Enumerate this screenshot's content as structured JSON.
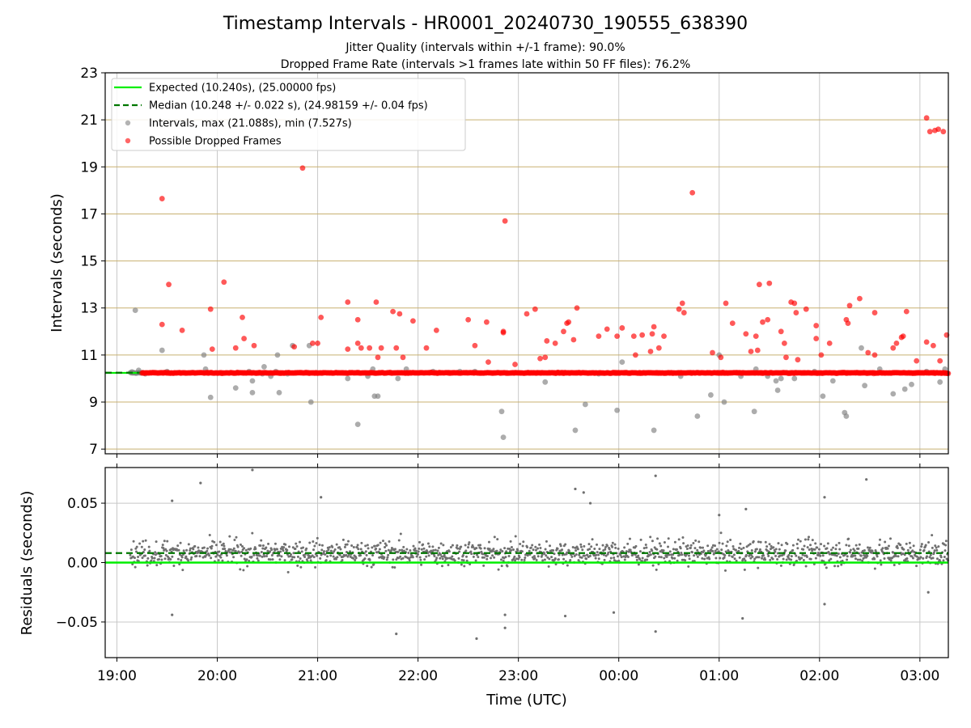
{
  "title": "Timestamp Intervals - HR0001_20240730_190555_638390",
  "subtitle1": "Jitter Quality (intervals within +/-1 frame): 90.0%",
  "subtitle2": "Dropped Frame Rate (intervals >1 frames late within 50 FF files): 76.2%",
  "colors": {
    "expected": "#00ee00",
    "median": "#007700",
    "intervals": "#808080",
    "dropped": "#ff0000",
    "hgrid": "#c8b070",
    "vgrid": "#c8c8c8"
  },
  "chart_data": [
    {
      "type": "scatter",
      "title": "Timestamp Intervals - HR0001_20240730_190555_638390",
      "xlabel": "",
      "ylabel": "Intervals (seconds)",
      "xlim": [
        "18:53",
        "03:17"
      ],
      "ylim": [
        6.8,
        23
      ],
      "xticks": [
        "19:00",
        "20:00",
        "21:00",
        "22:00",
        "23:00",
        "00:00",
        "01:00",
        "02:00",
        "03:00"
      ],
      "yticks": [
        7,
        9,
        11,
        13,
        15,
        17,
        19,
        21,
        23
      ],
      "grid": true,
      "legend_position": "top-left",
      "legend": [
        "Expected (10.240s), (25.00000 fps)",
        "Median (10.248 +/- 0.022 s), (24.98159 +/- 0.04 fps)",
        "Intervals, max (21.088s), min (7.527s)",
        "Possible Dropped Frames"
      ],
      "series": [
        {
          "name": "Expected (10.240s), (25.00000 fps)",
          "line_y": 10.24
        },
        {
          "name": "Median (10.248 +/- 0.022 s), (24.98159 +/- 0.04 fps)",
          "line_y": 10.248
        },
        {
          "name": "Intervals, max (21.088s), min (7.527s)",
          "baseline": 10.24,
          "points": [
            [
              "19:09",
              10.28
            ],
            [
              "19:11",
              12.9
            ],
            [
              "19:13",
              10.35
            ],
            [
              "19:17",
              10.2
            ],
            [
              "19:27",
              11.2
            ],
            [
              "19:30",
              10.3
            ],
            [
              "19:45",
              10.25
            ],
            [
              "19:52",
              11.0
            ],
            [
              "19:53",
              10.4
            ],
            [
              "19:56",
              9.2
            ],
            [
              "20:11",
              9.6
            ],
            [
              "20:19",
              10.3
            ],
            [
              "20:21",
              9.9
            ],
            [
              "20:21",
              9.4
            ],
            [
              "20:27",
              10.2
            ],
            [
              "20:28",
              10.5
            ],
            [
              "20:32",
              10.1
            ],
            [
              "20:35",
              10.3
            ],
            [
              "20:36",
              11.0
            ],
            [
              "20:37",
              9.4
            ],
            [
              "20:42",
              10.2
            ],
            [
              "20:45",
              11.4
            ],
            [
              "20:55",
              11.4
            ],
            [
              "20:56",
              9.0
            ],
            [
              "21:18",
              10.0
            ],
            [
              "21:24",
              8.05
            ],
            [
              "21:30",
              10.1
            ],
            [
              "21:33",
              10.4
            ],
            [
              "21:34",
              9.25
            ],
            [
              "21:36",
              9.25
            ],
            [
              "21:48",
              10.0
            ],
            [
              "21:53",
              10.4
            ],
            [
              "22:09",
              10.3
            ],
            [
              "22:25",
              10.3
            ],
            [
              "22:34",
              10.3
            ],
            [
              "22:50",
              8.6
            ],
            [
              "22:51",
              7.5
            ],
            [
              "23:16",
              9.85
            ],
            [
              "23:34",
              7.8
            ],
            [
              "23:40",
              8.9
            ],
            [
              "23:48",
              10.2
            ],
            [
              "23:59",
              8.65
            ],
            [
              "00:02",
              10.7
            ],
            [
              "00:21",
              7.8
            ],
            [
              "00:37",
              10.1
            ],
            [
              "00:47",
              8.4
            ],
            [
              "00:55",
              9.3
            ],
            [
              "01:00",
              11.0
            ],
            [
              "01:03",
              9.0
            ],
            [
              "01:13",
              10.1
            ],
            [
              "01:21",
              8.6
            ],
            [
              "01:22",
              10.4
            ],
            [
              "01:29",
              10.1
            ],
            [
              "01:34",
              9.9
            ],
            [
              "01:35",
              9.5
            ],
            [
              "01:37",
              10.0
            ],
            [
              "01:45",
              10.0
            ],
            [
              "01:57",
              10.3
            ],
            [
              "02:02",
              9.25
            ],
            [
              "02:08",
              9.9
            ],
            [
              "02:15",
              8.55
            ],
            [
              "02:16",
              8.4
            ],
            [
              "02:25",
              11.3
            ],
            [
              "02:27",
              9.7
            ],
            [
              "02:36",
              10.4
            ],
            [
              "02:44",
              9.35
            ],
            [
              "02:51",
              9.55
            ],
            [
              "02:55",
              9.75
            ],
            [
              "03:04",
              10.3
            ],
            [
              "03:12",
              9.85
            ],
            [
              "03:15",
              10.4
            ]
          ]
        },
        {
          "name": "Possible Dropped Frames",
          "baseline": 10.24,
          "baseline_range": [
            "19:15",
            "03:17"
          ],
          "points": [
            [
              "19:27",
              17.65
            ],
            [
              "19:27",
              12.3
            ],
            [
              "19:31",
              14.0
            ],
            [
              "19:39",
              12.05
            ],
            [
              "19:56",
              12.95
            ],
            [
              "19:57",
              11.25
            ],
            [
              "20:04",
              14.1
            ],
            [
              "20:11",
              11.3
            ],
            [
              "20:15",
              12.6
            ],
            [
              "20:16",
              11.7
            ],
            [
              "20:22",
              11.4
            ],
            [
              "20:57",
              11.5
            ],
            [
              "20:46",
              11.35
            ],
            [
              "20:51",
              18.95
            ],
            [
              "21:00",
              11.5
            ],
            [
              "21:02",
              12.6
            ],
            [
              "21:18",
              13.25
            ],
            [
              "21:18",
              11.25
            ],
            [
              "21:24",
              12.5
            ],
            [
              "21:24",
              11.5
            ],
            [
              "21:26",
              11.3
            ],
            [
              "21:31",
              11.3
            ],
            [
              "21:35",
              13.25
            ],
            [
              "21:36",
              10.9
            ],
            [
              "21:38",
              11.3
            ],
            [
              "21:45",
              12.85
            ],
            [
              "21:47",
              11.3
            ],
            [
              "21:49",
              12.75
            ],
            [
              "21:51",
              10.9
            ],
            [
              "21:57",
              12.45
            ],
            [
              "22:05",
              11.3
            ],
            [
              "22:11",
              12.05
            ],
            [
              "22:30",
              12.5
            ],
            [
              "22:34",
              11.4
            ],
            [
              "22:41",
              12.4
            ],
            [
              "22:42",
              10.7
            ],
            [
              "22:51",
              12.0
            ],
            [
              "22:51",
              11.95
            ],
            [
              "22:52",
              16.7
            ],
            [
              "22:58",
              10.6
            ],
            [
              "23:05",
              12.75
            ],
            [
              "23:10",
              12.95
            ],
            [
              "23:13",
              10.85
            ],
            [
              "23:16",
              10.9
            ],
            [
              "23:17",
              11.6
            ],
            [
              "23:22",
              11.5
            ],
            [
              "23:27",
              12.0
            ],
            [
              "23:29",
              12.35
            ],
            [
              "23:30",
              12.4
            ],
            [
              "23:33",
              11.65
            ],
            [
              "23:35",
              13.0
            ],
            [
              "23:48",
              11.8
            ],
            [
              "23:53",
              12.1
            ],
            [
              "23:59",
              11.8
            ],
            [
              "00:02",
              12.15
            ],
            [
              "00:09",
              11.8
            ],
            [
              "00:10",
              11.0
            ],
            [
              "00:14",
              11.85
            ],
            [
              "00:19",
              11.15
            ],
            [
              "00:20",
              11.9
            ],
            [
              "00:21",
              12.2
            ],
            [
              "00:24",
              11.3
            ],
            [
              "00:27",
              11.8
            ],
            [
              "00:36",
              12.95
            ],
            [
              "00:38",
              13.2
            ],
            [
              "00:39",
              12.8
            ],
            [
              "00:44",
              17.9
            ],
            [
              "00:56",
              11.1
            ],
            [
              "01:04",
              13.2
            ],
            [
              "01:01",
              10.9
            ],
            [
              "01:08",
              12.35
            ],
            [
              "01:16",
              11.9
            ],
            [
              "01:19",
              11.15
            ],
            [
              "01:22",
              11.8
            ],
            [
              "01:23",
              11.2
            ],
            [
              "01:24",
              14.0
            ],
            [
              "01:26",
              12.4
            ],
            [
              "01:29",
              12.5
            ],
            [
              "01:30",
              14.05
            ],
            [
              "01:37",
              12.0
            ],
            [
              "01:39",
              11.5
            ],
            [
              "01:40",
              10.9
            ],
            [
              "01:43",
              13.25
            ],
            [
              "01:45",
              13.2
            ],
            [
              "01:46",
              12.8
            ],
            [
              "01:47",
              10.8
            ],
            [
              "01:52",
              12.95
            ],
            [
              "01:58",
              12.25
            ],
            [
              "01:58",
              11.7
            ],
            [
              "02:01",
              11.0
            ],
            [
              "02:06",
              11.5
            ],
            [
              "02:16",
              12.5
            ],
            [
              "02:18",
              13.1
            ],
            [
              "02:17",
              12.35
            ],
            [
              "02:24",
              13.4
            ],
            [
              "02:29",
              11.1
            ],
            [
              "02:33",
              11.0
            ],
            [
              "02:33",
              12.8
            ],
            [
              "02:44",
              11.3
            ],
            [
              "02:46",
              11.5
            ],
            [
              "02:52",
              12.85
            ],
            [
              "02:49",
              11.75
            ],
            [
              "02:50",
              11.8
            ],
            [
              "02:58",
              10.75
            ],
            [
              "03:04",
              11.55
            ],
            [
              "03:08",
              11.4
            ],
            [
              "03:16",
              11.85
            ],
            [
              "03:12",
              10.75
            ],
            [
              "03:04",
              21.08
            ],
            [
              "03:06",
              20.5
            ],
            [
              "03:09",
              20.55
            ],
            [
              "03:11",
              20.6
            ],
            [
              "03:14",
              20.5
            ]
          ]
        }
      ]
    },
    {
      "type": "scatter",
      "title": "",
      "xlabel": "Time (UTC)",
      "ylabel": "Residuals (seconds)",
      "xlim": [
        "18:53",
        "03:17"
      ],
      "ylim": [
        -0.08,
        0.08
      ],
      "xticks": [
        "19:00",
        "20:00",
        "21:00",
        "22:00",
        "23:00",
        "00:00",
        "01:00",
        "02:00",
        "03:00"
      ],
      "yticks": [
        0.05,
        0.0,
        -0.05
      ],
      "ytick_labels": [
        "0.05",
        "0.00",
        "−0.05"
      ],
      "grid": true,
      "series": [
        {
          "name": "",
          "line_y": 0.0
        },
        {
          "name": "",
          "line_y": 0.008
        },
        {
          "name": "",
          "range": [
            "19:08",
            "03:17"
          ],
          "center": 0.008,
          "spread": 0.009,
          "outliers": [
            [
              "20:21",
              0.078
            ],
            [
              "19:50",
              0.067
            ],
            [
              "19:33",
              0.052
            ],
            [
              "21:02",
              0.055
            ],
            [
              "19:33",
              -0.044
            ],
            [
              "21:47",
              -0.06
            ],
            [
              "22:35",
              -0.064
            ],
            [
              "22:52",
              -0.044
            ],
            [
              "22:52",
              -0.055
            ],
            [
              "23:28",
              -0.045
            ],
            [
              "23:39",
              0.059
            ],
            [
              "23:34",
              0.062
            ],
            [
              "23:43",
              0.05
            ],
            [
              "23:57",
              -0.042
            ],
            [
              "00:22",
              0.073
            ],
            [
              "00:22",
              -0.058
            ],
            [
              "02:03",
              0.055
            ],
            [
              "02:28",
              0.07
            ],
            [
              "01:14",
              -0.047
            ],
            [
              "02:03",
              -0.035
            ],
            [
              "01:16",
              0.045
            ],
            [
              "03:05",
              -0.025
            ],
            [
              "01:00",
              0.04
            ]
          ]
        }
      ]
    }
  ]
}
